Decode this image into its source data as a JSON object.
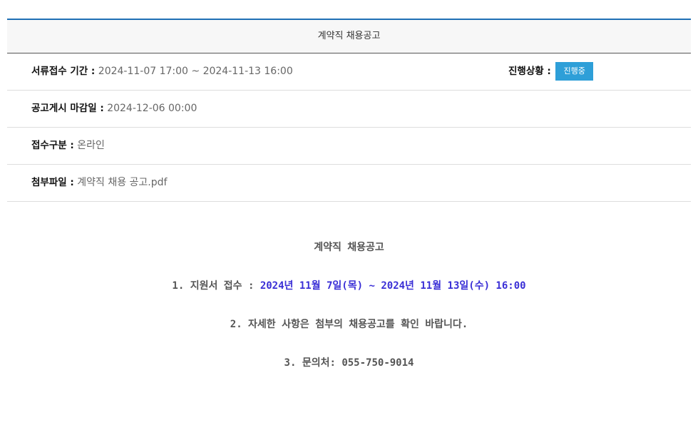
{
  "header": {
    "title": "계약직 채용공고"
  },
  "rows": [
    {
      "label": "서류접수 기간 :",
      "value": "2024-11-07 17:00 ~ 2024-11-13 16:00"
    },
    {
      "label": "공고게시 마감일 :",
      "value": "2024-12-06 00:00"
    },
    {
      "label": "접수구분 :",
      "value": "온라인"
    },
    {
      "label": "첨부파일 :",
      "value": "계약직 채용 공고.pdf"
    }
  ],
  "status": {
    "label": "진행상황 :",
    "badge": "진행중",
    "badge_color": "#2e9fd8"
  },
  "content": {
    "title": "계약직 채용공고",
    "line1_prefix": "1. 지원서 접수 : ",
    "line1_dates": "2024년 11월 7일(목) ~ 2024년 11월 13일(수) 16:00",
    "line2": "2. 자세한 사항은 첨부의 채용공고를 확인 바랍니다.",
    "line3": "3. 문의처: 055-750-9014"
  }
}
